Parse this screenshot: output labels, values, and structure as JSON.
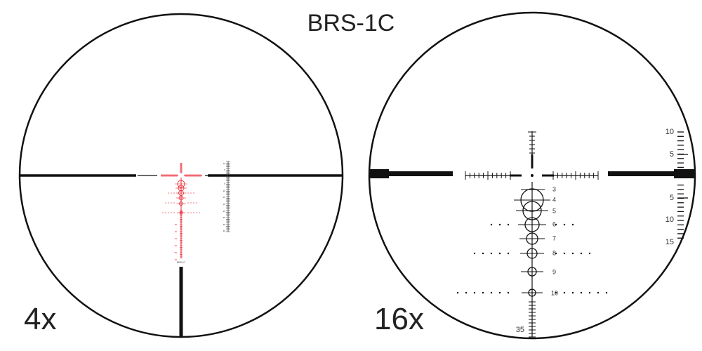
{
  "title": "BRS-1C",
  "left_view": {
    "magnification": "4x",
    "reticle_color": "#e8202a",
    "reticle_label": "BRS-1C",
    "scale_labels": [
      "10",
      "5",
      "5",
      "10",
      "15",
      "20",
      "25",
      "30",
      "35",
      "40"
    ],
    "ladder_labels": [
      "35",
      "40",
      "45",
      "50",
      "55",
      "60"
    ]
  },
  "right_view": {
    "magnification": "16x",
    "reticle_color": "#111111",
    "holdover_labels": [
      "3",
      "4",
      "5",
      "6",
      "7",
      "8",
      "9",
      "10"
    ],
    "bottom_label": "35",
    "scale_labels_upper": [
      "10",
      "5"
    ],
    "scale_labels_lower": [
      "5",
      "10",
      "15"
    ]
  }
}
